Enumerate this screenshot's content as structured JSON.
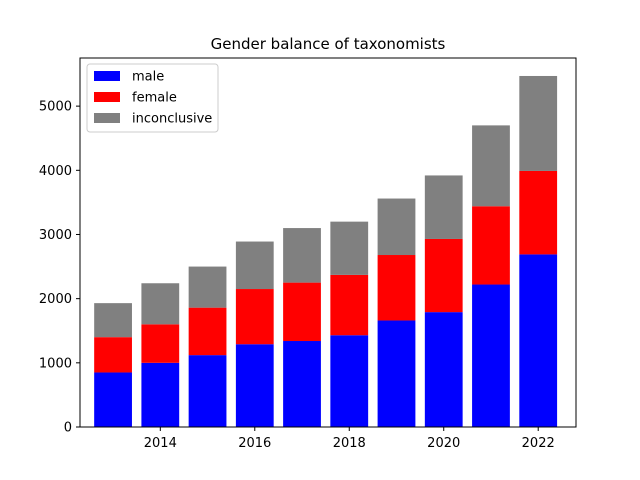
{
  "chart_data": {
    "type": "bar",
    "stacked": true,
    "title": "Gender balance of taxonomists",
    "xlabel": "",
    "ylabel": "",
    "categories": [
      2013,
      2014,
      2015,
      2016,
      2017,
      2018,
      2019,
      2020,
      2021,
      2022
    ],
    "x_ticks": [
      2014,
      2016,
      2018,
      2020,
      2022
    ],
    "x_tick_labels": [
      "2014",
      "2016",
      "2018",
      "2020",
      "2022"
    ],
    "xlim": [
      2012.3,
      2022.8
    ],
    "ylim": [
      0,
      5750
    ],
    "y_ticks": [
      0,
      1000,
      2000,
      3000,
      4000,
      5000
    ],
    "y_tick_labels": [
      "0",
      "1000",
      "2000",
      "3000",
      "4000",
      "5000"
    ],
    "grid": false,
    "legend_position": "upper-left",
    "series": [
      {
        "name": "male",
        "color": "#0000ff",
        "values": [
          850,
          1000,
          1120,
          1290,
          1340,
          1430,
          1660,
          1790,
          2220,
          2690
        ]
      },
      {
        "name": "female",
        "color": "#ff0000",
        "values": [
          550,
          600,
          740,
          860,
          910,
          940,
          1020,
          1140,
          1220,
          1300
        ]
      },
      {
        "name": "inconclusive",
        "color": "#808080",
        "values": [
          530,
          640,
          640,
          740,
          850,
          830,
          880,
          990,
          1260,
          1480
        ]
      }
    ]
  }
}
